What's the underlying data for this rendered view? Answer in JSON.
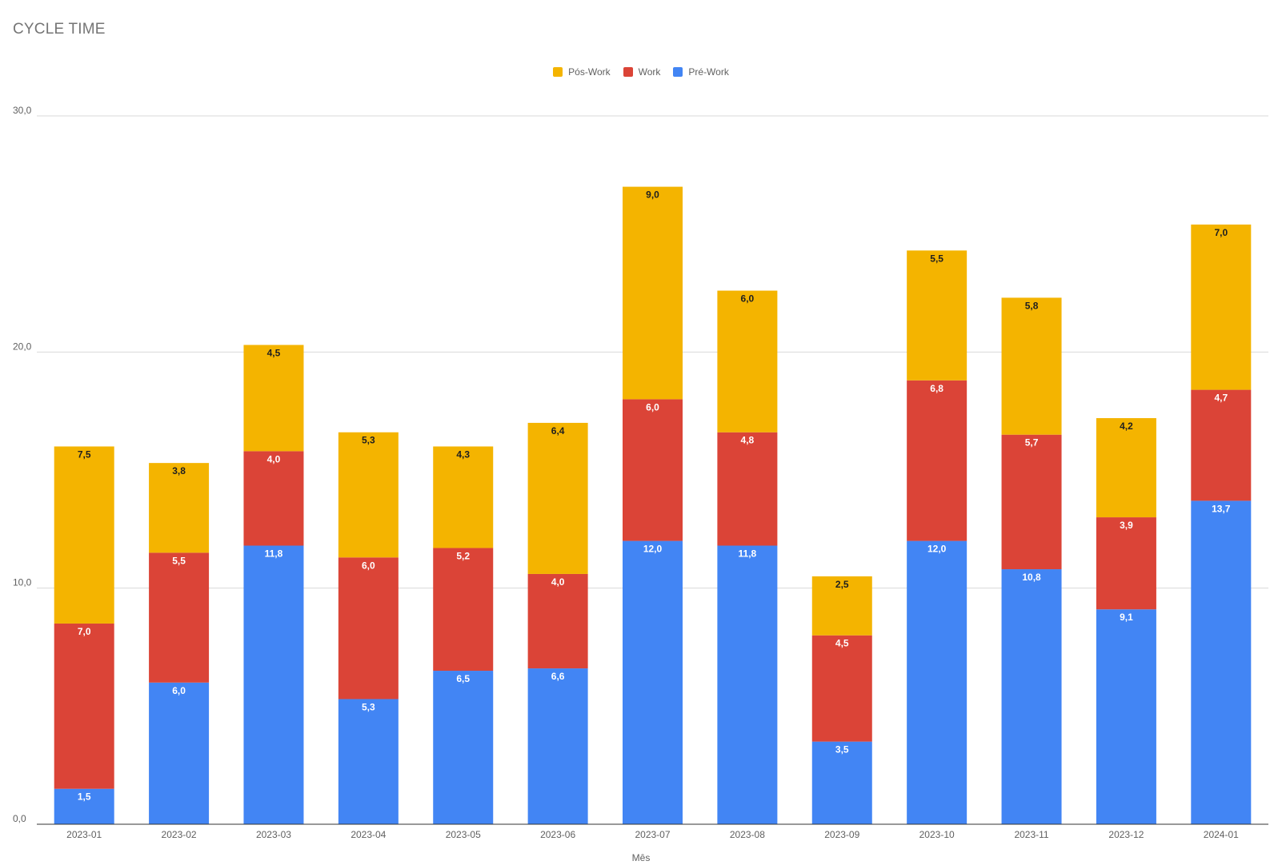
{
  "chart_data": {
    "type": "bar",
    "stacked": true,
    "title": "CYCLE TIME",
    "xlabel": "Mês",
    "ylabel": "",
    "ylim": [
      0,
      30
    ],
    "yticks": [
      "0,0",
      "10,0",
      "20,0",
      "30,0"
    ],
    "grid": true,
    "legend_position": "top-center",
    "categories": [
      "2023-01",
      "2023-02",
      "2023-03",
      "2023-04",
      "2023-05",
      "2023-06",
      "2023-07",
      "2023-08",
      "2023-09",
      "2023-10",
      "2023-11",
      "2023-12",
      "2024-01"
    ],
    "series": [
      {
        "name": "Pré-Work",
        "color": "#4285f4",
        "label_color": "#ffffff",
        "values": [
          1.5,
          6.0,
          11.8,
          5.3,
          6.5,
          6.6,
          12.0,
          11.8,
          3.5,
          12.0,
          10.8,
          9.1,
          13.7
        ]
      },
      {
        "name": "Work",
        "color": "#db4437",
        "label_color": "#ffffff",
        "values": [
          7.0,
          5.5,
          4.0,
          6.0,
          5.2,
          4.0,
          6.0,
          4.8,
          4.5,
          6.8,
          5.7,
          3.9,
          4.7
        ]
      },
      {
        "name": "Pós-Work",
        "color": "#f4b400",
        "label_color": "#1f1f1f",
        "values": [
          7.5,
          3.8,
          4.5,
          5.3,
          4.3,
          6.4,
          9.0,
          6.0,
          2.5,
          5.5,
          5.8,
          4.2,
          7.0
        ]
      }
    ],
    "legend_order": [
      "Pós-Work",
      "Work",
      "Pré-Work"
    ]
  }
}
